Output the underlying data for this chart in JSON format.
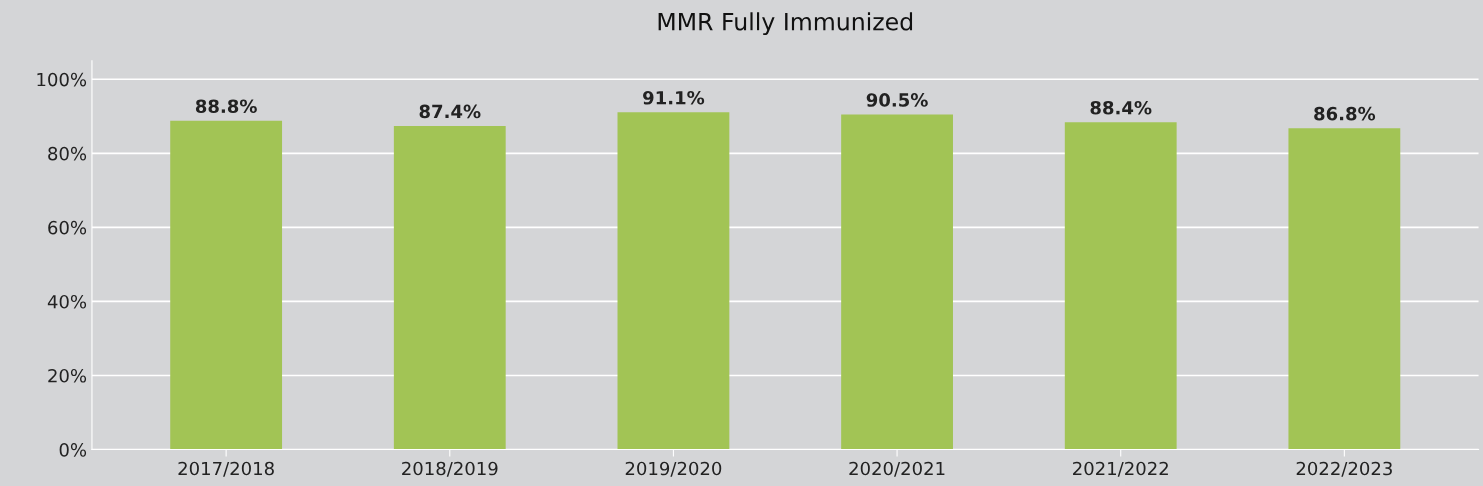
{
  "chart_data": {
    "type": "bar",
    "title": "MMR Fully Immunized",
    "categories": [
      "2017/2018",
      "2018/2019",
      "2019/2020",
      "2020/2021",
      "2021/2022",
      "2022/2023"
    ],
    "values": [
      88.8,
      87.4,
      91.1,
      90.5,
      88.4,
      86.8
    ],
    "value_labels": [
      "88.8%",
      "87.4%",
      "91.1%",
      "90.5%",
      "88.4%",
      "86.8%"
    ],
    "color": "#a2c455",
    "ylim": [
      0,
      105
    ],
    "yticks": [
      {
        "value": 0,
        "label": "0%"
      },
      {
        "value": 20,
        "label": "20%"
      },
      {
        "value": 40,
        "label": "40%"
      },
      {
        "value": 60,
        "label": "60%"
      },
      {
        "value": 80,
        "label": "80%"
      },
      {
        "value": 100,
        "label": "100%"
      }
    ],
    "grid": "y",
    "legend": false
  }
}
